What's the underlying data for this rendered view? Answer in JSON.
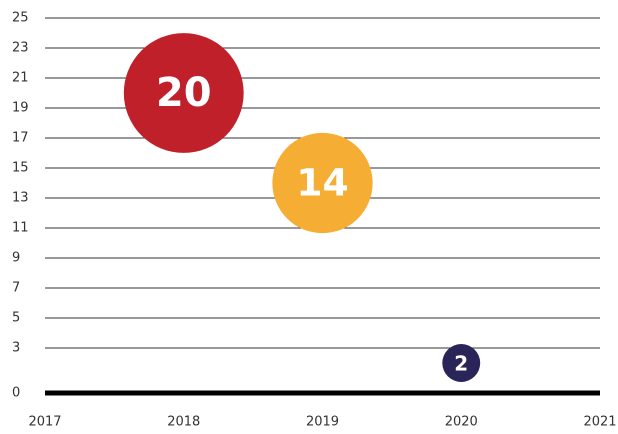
{
  "chart_data": {
    "type": "bubble",
    "x": [
      2018,
      2019,
      2020
    ],
    "values": [
      20,
      14,
      2
    ],
    "colors": [
      "#c0202a",
      "#f5ae33",
      "#2a2559"
    ],
    "xlim": [
      2017,
      2021
    ],
    "xticks": [
      2017,
      2018,
      2019,
      2020,
      2021
    ],
    "ylim": [
      0,
      25
    ],
    "yticks": [
      0,
      3,
      5,
      7,
      9,
      11,
      13,
      15,
      17,
      19,
      21,
      23,
      25
    ],
    "grid": true
  }
}
